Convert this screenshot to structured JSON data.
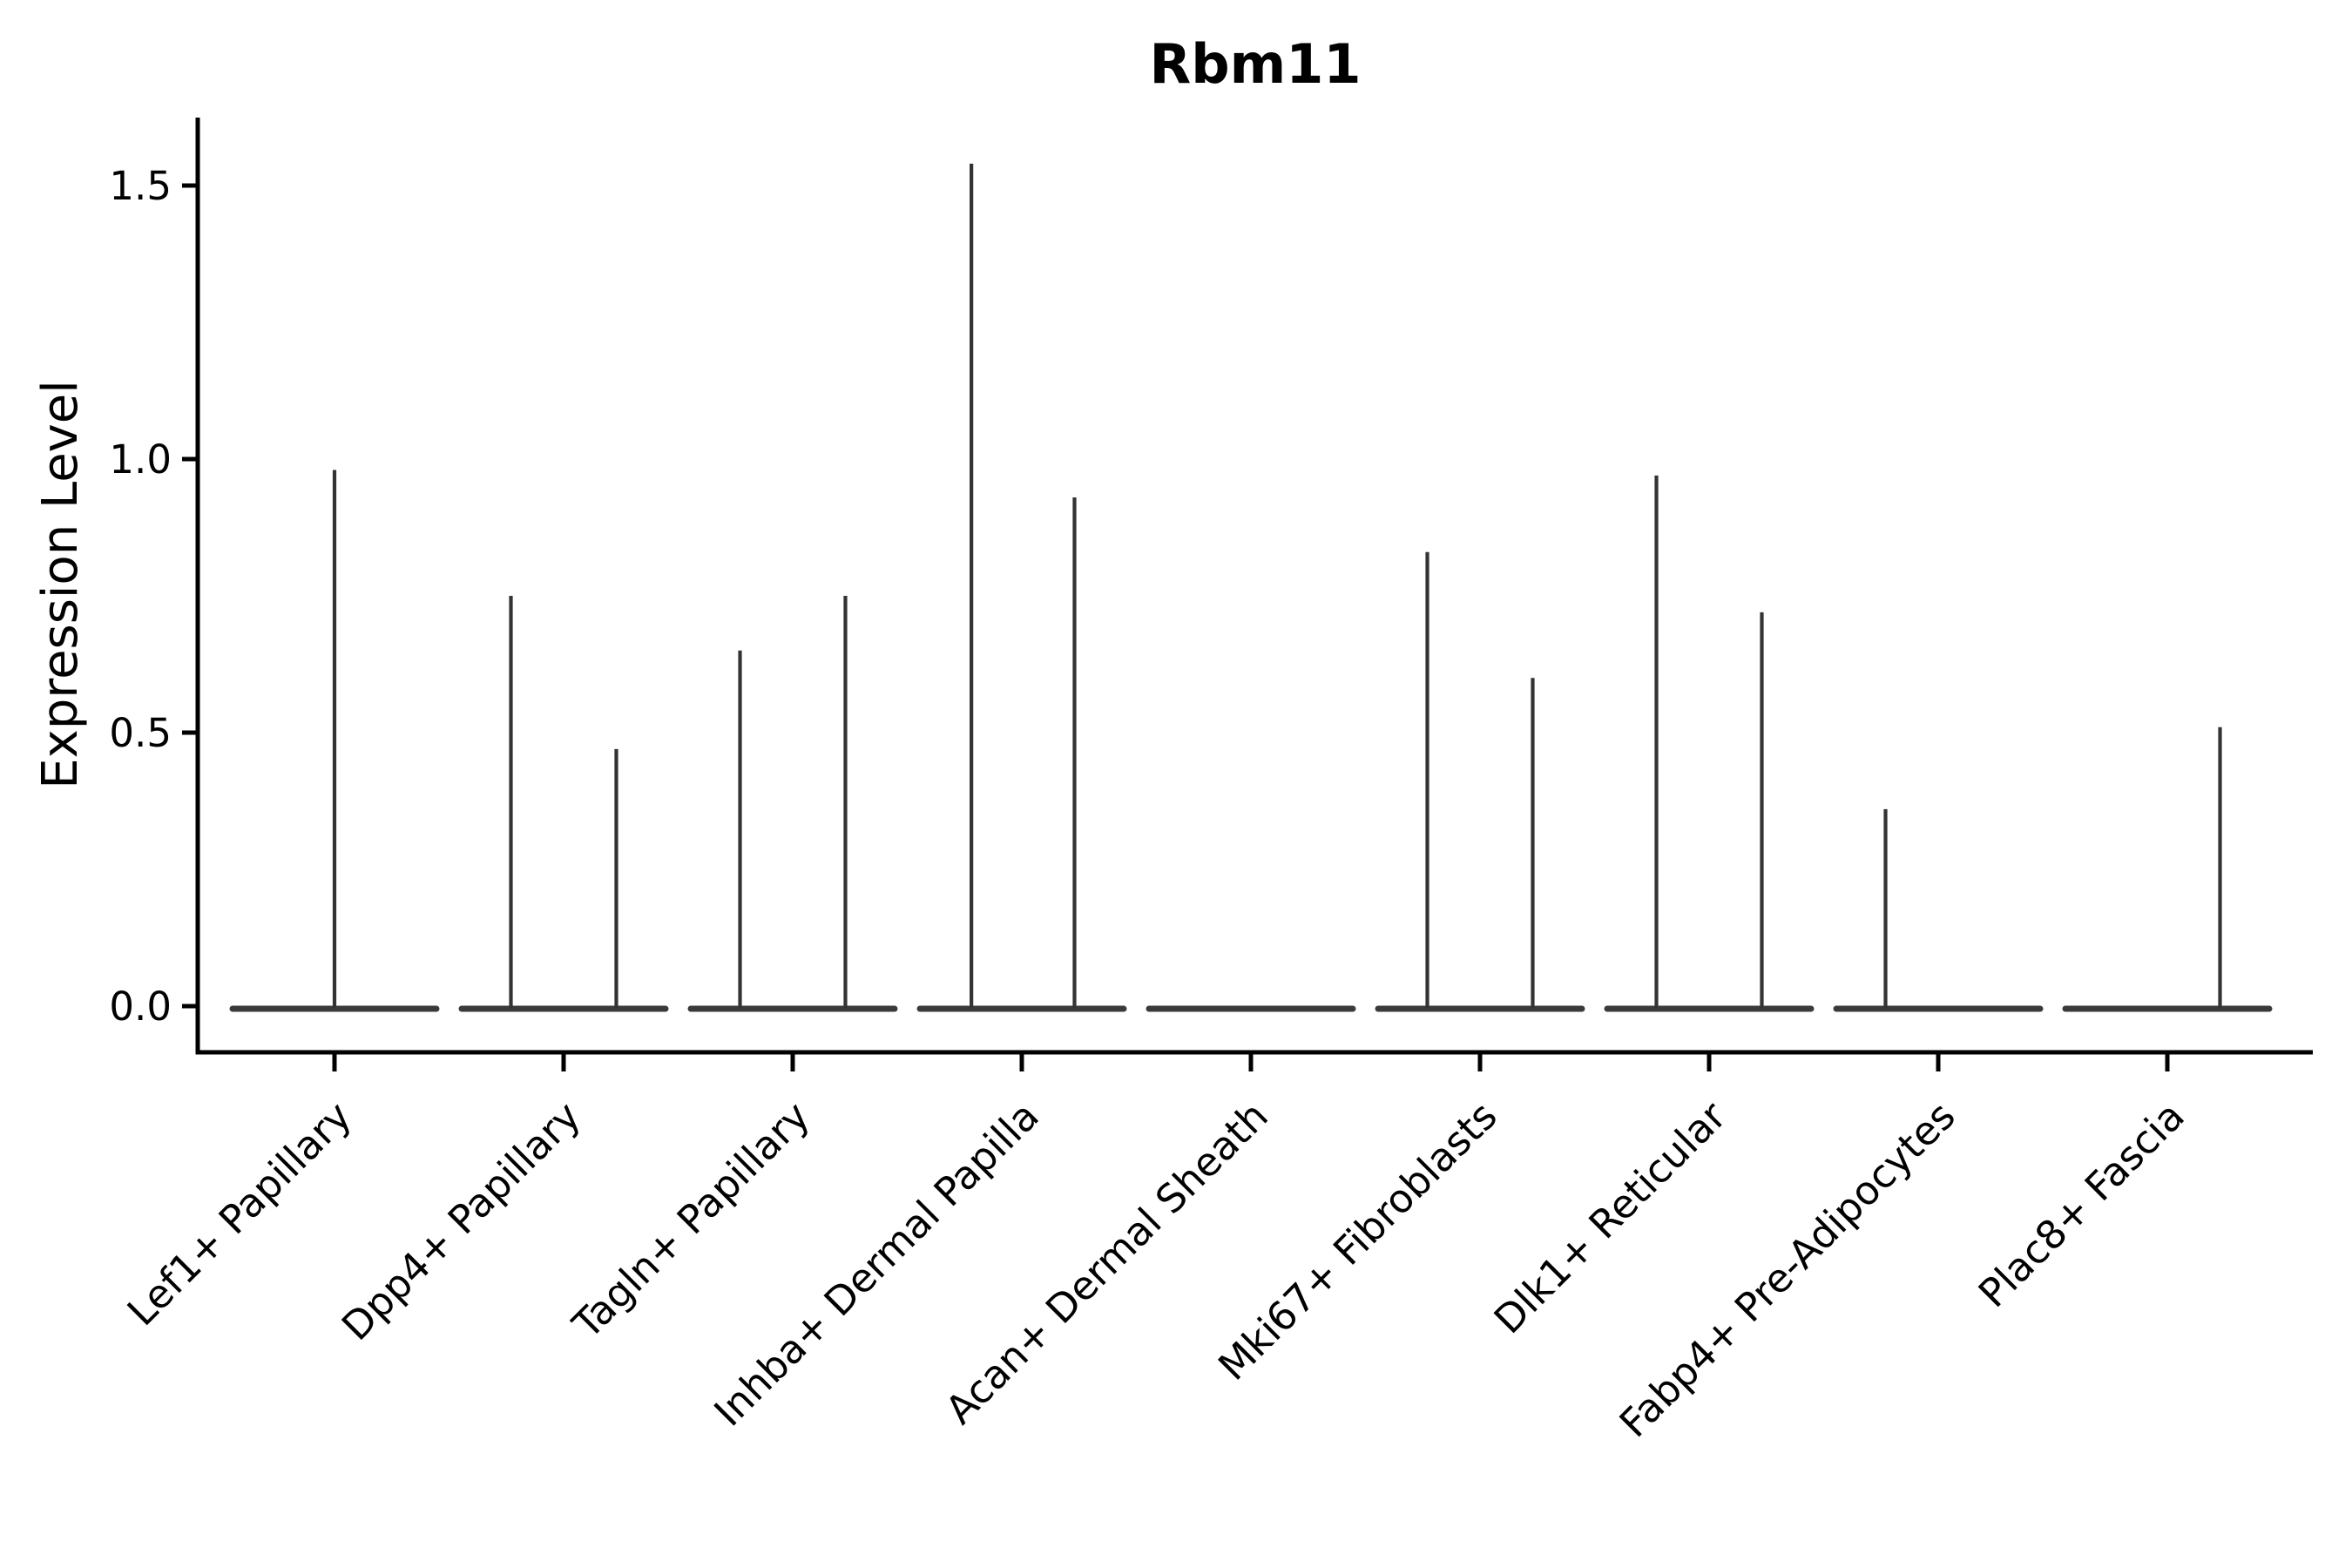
{
  "figure": {
    "title": "Rbm11",
    "background": "#ffffff"
  },
  "chart_data": {
    "type": "violin",
    "title": "Rbm11",
    "xlabel": "",
    "ylabel": "Expression Level",
    "ytick_labels": [
      "0.0",
      "0.5",
      "1.0",
      "1.5"
    ],
    "ytick_values": [
      0.0,
      0.5,
      1.0,
      1.5
    ],
    "ylim": [
      -0.08,
      1.62
    ],
    "grid": false,
    "legend": "none",
    "categories": [
      "Lef1+ Papillary",
      "Dpp4+ Papillary",
      "Tagln+ Papillary",
      "Inhba+ Dermal Papilla",
      "Acan+ Dermal Sheath",
      "Mki67+ Fibroblasts",
      "Dlk1+ Reticular",
      "Fabp4+ Pre-Adipocytes",
      "Plac8+ Fascia"
    ],
    "violins": [
      {
        "category": "Lef1+ Papillary",
        "baseline_halfwidth": 0.46,
        "spikes": [
          {
            "offset": 0.0,
            "max": 0.98
          }
        ]
      },
      {
        "category": "Dpp4+ Papillary",
        "baseline_halfwidth": 0.46,
        "spikes": [
          {
            "offset": -0.23,
            "max": 0.75
          },
          {
            "offset": 0.23,
            "max": 0.47
          }
        ]
      },
      {
        "category": "Tagln+ Papillary",
        "baseline_halfwidth": 0.46,
        "spikes": [
          {
            "offset": -0.23,
            "max": 0.65
          },
          {
            "offset": 0.23,
            "max": 0.75
          }
        ]
      },
      {
        "category": "Inhba+ Dermal Papilla",
        "baseline_halfwidth": 0.46,
        "spikes": [
          {
            "offset": -0.22,
            "max": 1.54
          },
          {
            "offset": 0.23,
            "max": 0.93
          }
        ]
      },
      {
        "category": "Acan+ Dermal Sheath",
        "baseline_halfwidth": 0.46,
        "spikes": []
      },
      {
        "category": "Mki67+ Fibroblasts",
        "baseline_halfwidth": 0.46,
        "spikes": [
          {
            "offset": -0.23,
            "max": 0.83
          },
          {
            "offset": 0.23,
            "max": 0.6
          }
        ]
      },
      {
        "category": "Dlk1+ Reticular",
        "baseline_halfwidth": 0.46,
        "spikes": [
          {
            "offset": -0.23,
            "max": 0.97
          },
          {
            "offset": 0.23,
            "max": 0.72
          }
        ]
      },
      {
        "category": "Fabp4+ Pre-Adipocytes",
        "baseline_halfwidth": 0.46,
        "spikes": [
          {
            "offset": -0.23,
            "max": 0.36
          }
        ]
      },
      {
        "category": "Plac8+ Fascia",
        "baseline_halfwidth": 0.46,
        "spikes": [
          {
            "offset": 0.23,
            "max": 0.51
          }
        ]
      }
    ],
    "colors": {
      "violin": "#333333",
      "baseline": "#3a3a3a",
      "axis": "#000000",
      "text": "#000000",
      "background": "#ffffff"
    }
  }
}
